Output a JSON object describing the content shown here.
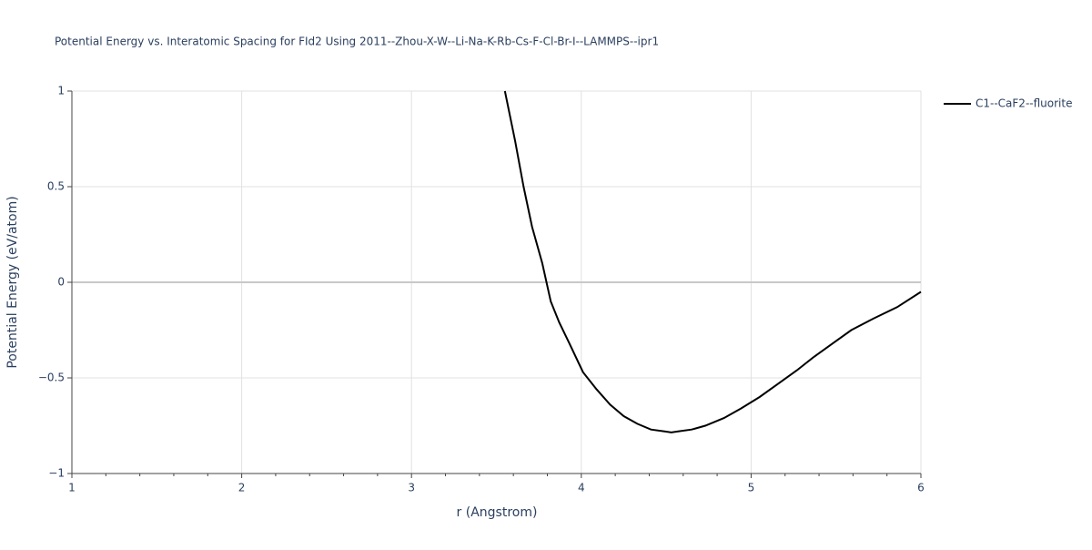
{
  "chart_data": {
    "type": "line",
    "title": "Potential Energy vs. Interatomic Spacing for FId2 Using 2011--Zhou-X-W--Li-Na-K-Rb-Cs-F-Cl-Br-I--LAMMPS--ipr1",
    "x_label": "r (Angstrom)",
    "y_label": "Potential Energy (eV/atom)",
    "x": [
      3.55,
      3.61,
      3.66,
      3.71,
      3.77,
      3.82,
      3.87,
      3.93,
      4.01,
      4.09,
      4.17,
      4.25,
      4.33,
      4.41,
      4.49,
      4.53,
      4.57,
      4.65,
      4.73,
      4.84,
      4.94,
      5.05,
      5.16,
      5.27,
      5.37,
      5.48,
      5.59,
      5.72,
      5.86,
      6.0
    ],
    "series": [
      {
        "name": "C1--CaF2--fluorite",
        "color": "#000000",
        "values": [
          1.0,
          0.74,
          0.5,
          0.29,
          0.1,
          -0.1,
          -0.21,
          -0.32,
          -0.47,
          -0.56,
          -0.64,
          -0.7,
          -0.74,
          -0.77,
          -0.78,
          -0.785,
          -0.78,
          -0.77,
          -0.75,
          -0.71,
          -0.66,
          -0.6,
          -0.53,
          -0.46,
          -0.39,
          -0.32,
          -0.25,
          -0.19,
          -0.13,
          -0.05
        ]
      }
    ],
    "xlim": [
      1,
      6
    ],
    "xticks": [
      1,
      2,
      3,
      4,
      5,
      6
    ],
    "ylim": [
      -1,
      1
    ],
    "yticks": [
      {
        "value": -1,
        "label": "−1"
      },
      {
        "value": -0.5,
        "label": "−0.5"
      },
      0,
      0.5,
      1
    ],
    "grid": true,
    "legend": "top-right"
  }
}
